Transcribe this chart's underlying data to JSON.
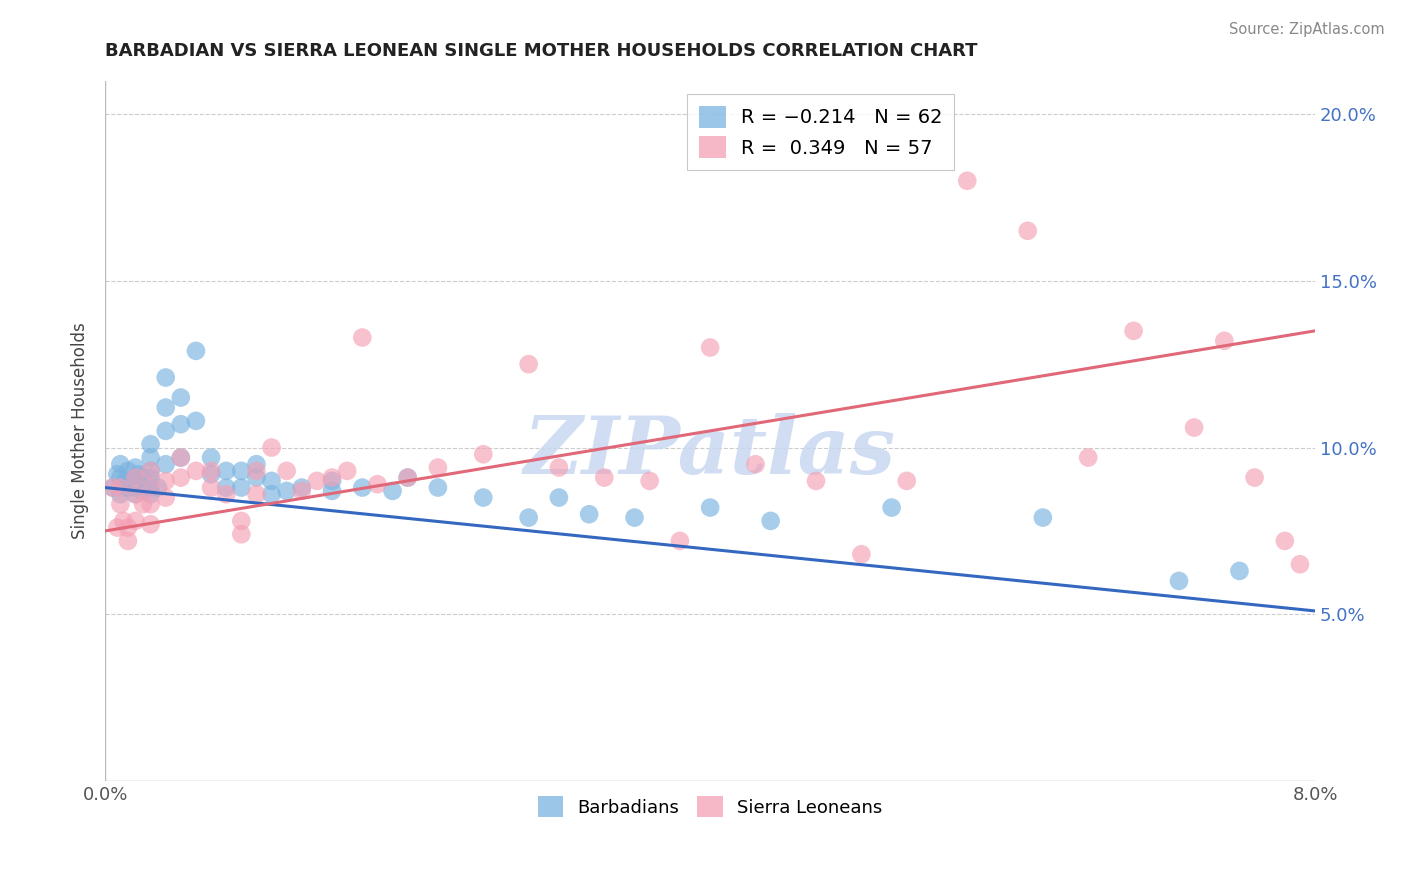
{
  "title": "BARBADIAN VS SIERRA LEONEAN SINGLE MOTHER HOUSEHOLDS CORRELATION CHART",
  "source": "Source: ZipAtlas.com",
  "ylabel": "Single Mother Households",
  "xmin": 0.0,
  "xmax": 0.08,
  "ymin": 0.0,
  "ymax": 0.21,
  "yticks": [
    0.05,
    0.1,
    0.15,
    0.2
  ],
  "ytick_labels": [
    "5.0%",
    "10.0%",
    "15.0%",
    "20.0%"
  ],
  "xticks": [
    0.0,
    0.01,
    0.02,
    0.03,
    0.04,
    0.05,
    0.06,
    0.07,
    0.08
  ],
  "xtick_labels": [
    "0.0%",
    "",
    "",
    "",
    "",
    "",
    "",
    "",
    "8.0%"
  ],
  "barbadian_color": "#7ab3e0",
  "sierra_leonean_color": "#f4a0b5",
  "barbadian_label": "Barbadians",
  "sierra_leonean_label": "Sierra Leoneans",
  "legend_R_barbadian": "R = −0.214",
  "legend_N_barbadian": "N = 62",
  "legend_R_sierra": "R =  0.349",
  "legend_N_sierra": "N = 57",
  "watermark": "ZIPatlas",
  "watermark_color": "#c8d8f0",
  "blue_line_x0": 0.0,
  "blue_line_y0": 0.088,
  "blue_line_x1": 0.08,
  "blue_line_y1": 0.051,
  "pink_line_x0": 0.0,
  "pink_line_y0": 0.075,
  "pink_line_x1": 0.08,
  "pink_line_y1": 0.135,
  "barbadian_x": [
    0.0005,
    0.0008,
    0.001,
    0.001,
    0.001,
    0.0012,
    0.0013,
    0.0015,
    0.0015,
    0.002,
    0.002,
    0.002,
    0.002,
    0.002,
    0.0022,
    0.0025,
    0.0025,
    0.003,
    0.003,
    0.003,
    0.003,
    0.003,
    0.003,
    0.0035,
    0.004,
    0.004,
    0.004,
    0.004,
    0.005,
    0.005,
    0.005,
    0.006,
    0.006,
    0.007,
    0.007,
    0.008,
    0.008,
    0.009,
    0.009,
    0.01,
    0.01,
    0.011,
    0.011,
    0.012,
    0.013,
    0.015,
    0.015,
    0.017,
    0.019,
    0.02,
    0.022,
    0.025,
    0.028,
    0.03,
    0.032,
    0.035,
    0.04,
    0.044,
    0.052,
    0.062,
    0.071,
    0.075
  ],
  "barbadian_y": [
    0.088,
    0.092,
    0.086,
    0.091,
    0.095,
    0.088,
    0.09,
    0.093,
    0.088,
    0.09,
    0.086,
    0.091,
    0.094,
    0.088,
    0.092,
    0.091,
    0.087,
    0.091,
    0.088,
    0.093,
    0.097,
    0.101,
    0.086,
    0.088,
    0.095,
    0.105,
    0.112,
    0.121,
    0.097,
    0.107,
    0.115,
    0.129,
    0.108,
    0.092,
    0.097,
    0.088,
    0.093,
    0.088,
    0.093,
    0.091,
    0.095,
    0.086,
    0.09,
    0.087,
    0.088,
    0.09,
    0.087,
    0.088,
    0.087,
    0.091,
    0.088,
    0.085,
    0.079,
    0.085,
    0.08,
    0.079,
    0.082,
    0.078,
    0.082,
    0.079,
    0.06,
    0.063
  ],
  "sierra_x": [
    0.0005,
    0.0008,
    0.001,
    0.001,
    0.0012,
    0.0015,
    0.0015,
    0.002,
    0.002,
    0.002,
    0.0025,
    0.003,
    0.003,
    0.003,
    0.003,
    0.004,
    0.004,
    0.005,
    0.005,
    0.006,
    0.007,
    0.007,
    0.008,
    0.009,
    0.009,
    0.01,
    0.01,
    0.011,
    0.012,
    0.013,
    0.014,
    0.015,
    0.016,
    0.017,
    0.018,
    0.02,
    0.022,
    0.025,
    0.028,
    0.03,
    0.033,
    0.036,
    0.038,
    0.04,
    0.043,
    0.047,
    0.05,
    0.053,
    0.057,
    0.061,
    0.065,
    0.068,
    0.072,
    0.074,
    0.076,
    0.078,
    0.079
  ],
  "sierra_y": [
    0.088,
    0.076,
    0.083,
    0.088,
    0.078,
    0.072,
    0.076,
    0.086,
    0.091,
    0.078,
    0.083,
    0.088,
    0.093,
    0.083,
    0.077,
    0.085,
    0.09,
    0.091,
    0.097,
    0.093,
    0.088,
    0.093,
    0.086,
    0.078,
    0.074,
    0.086,
    0.093,
    0.1,
    0.093,
    0.087,
    0.09,
    0.091,
    0.093,
    0.133,
    0.089,
    0.091,
    0.094,
    0.098,
    0.125,
    0.094,
    0.091,
    0.09,
    0.072,
    0.13,
    0.095,
    0.09,
    0.068,
    0.09,
    0.18,
    0.165,
    0.097,
    0.135,
    0.106,
    0.132,
    0.091,
    0.072,
    0.065
  ]
}
